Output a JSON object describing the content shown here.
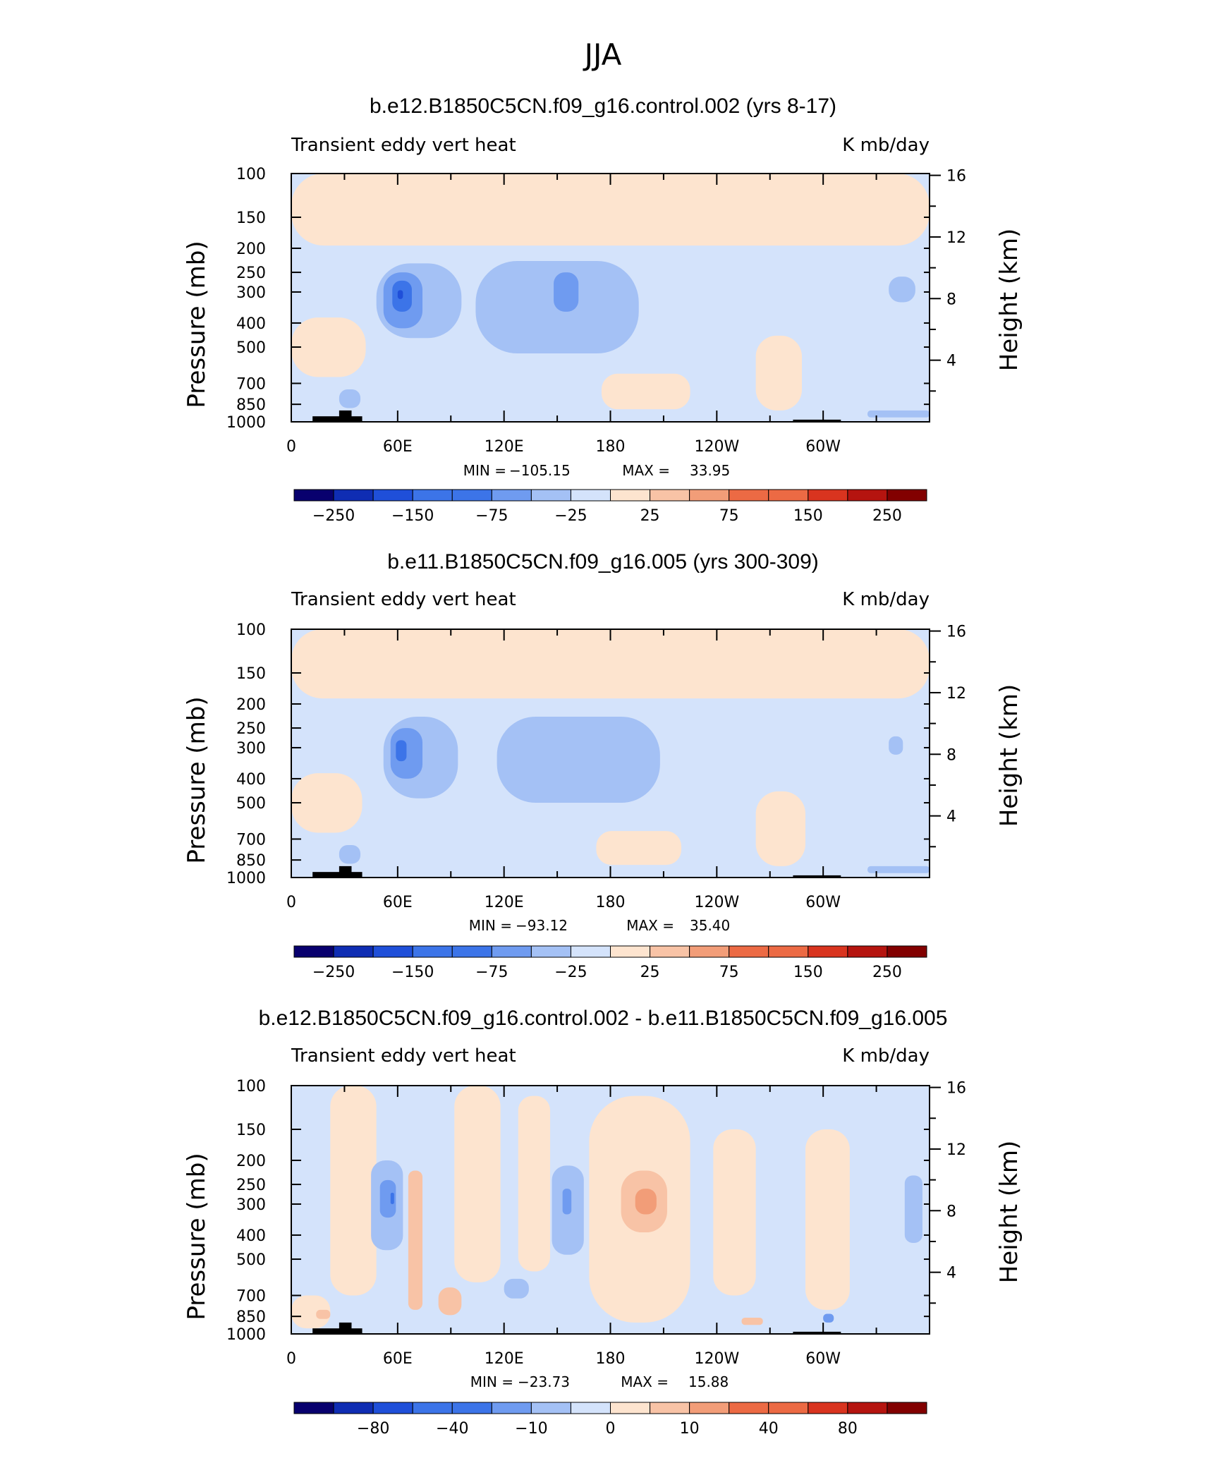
{
  "figure_title": "JJA",
  "colors": {
    "palette": [
      "#08006e",
      "#0f2db3",
      "#1f4fd9",
      "#3c74e8",
      "#6f9bf0",
      "#a4c1f5",
      "#d4e3fb",
      "#fde4cf",
      "#f8c3a6",
      "#f29d78",
      "#ec6a44",
      "#d9341f",
      "#b5140f",
      "#820000"
    ],
    "land": "#000000"
  },
  "chart_data": [
    {
      "type": "heatmap",
      "title": "b.e12.B1850C5CN.f09_g16.control.002 (yrs 8-17)",
      "variable_label": "Transient eddy vert heat",
      "units_label": "K mb/day",
      "ylabel": "Pressure (mb)",
      "ylabel_right": "Height (km)",
      "xticks": [
        "0",
        "60E",
        "120E",
        "180",
        "120W",
        "60W"
      ],
      "xtick_lon": [
        0,
        60,
        120,
        180,
        240,
        300
      ],
      "xlim": [
        0,
        360
      ],
      "yticks": [
        "100",
        "150",
        "200",
        "250",
        "300",
        "400",
        "500",
        "700",
        "850",
        "1000"
      ],
      "ytick_values": [
        100,
        150,
        200,
        250,
        300,
        400,
        500,
        700,
        850,
        1000
      ],
      "ylim": [
        1000,
        100
      ],
      "right_ticks": [
        "16",
        "12",
        "8",
        "4"
      ],
      "right_tick_values": [
        16,
        12,
        8,
        4
      ],
      "min_label": "MIN =",
      "min_value": "−105.15",
      "max_label": "MAX =",
      "max_value": "33.95",
      "colorbar_labels": [
        "−250",
        "−150",
        "−75",
        "−25",
        "25",
        "75",
        "150",
        "250"
      ],
      "field": {
        "background_level": -1,
        "features": [
          {
            "level": 1,
            "lon": [
              0,
              360
            ],
            "p": [
              100,
              195
            ]
          },
          {
            "level": -2,
            "lon": [
              48,
              96
            ],
            "p": [
              230,
              460
            ]
          },
          {
            "level": -3,
            "lon": [
              52,
              74
            ],
            "p": [
              250,
              420
            ]
          },
          {
            "level": -4,
            "lon": [
              57,
              68
            ],
            "p": [
              270,
              360
            ]
          },
          {
            "level": -5,
            "lon": [
              60,
              63
            ],
            "p": [
              295,
              320
            ]
          },
          {
            "level": -2,
            "lon": [
              104,
              196
            ],
            "p": [
              225,
              530
            ]
          },
          {
            "level": -3,
            "lon": [
              148,
              162
            ],
            "p": [
              250,
              360
            ]
          },
          {
            "level": 1,
            "lon": [
              175,
              225
            ],
            "p": [
              640,
              890
            ]
          },
          {
            "level": 1,
            "lon": [
              262,
              288
            ],
            "p": [
              450,
              900
            ]
          },
          {
            "level": 1,
            "lon": [
              0,
              42
            ],
            "p": [
              380,
              660
            ]
          },
          {
            "level": -2,
            "lon": [
              27,
              39
            ],
            "p": [
              740,
              880
            ]
          },
          {
            "level": -2,
            "lon": [
              325,
              360
            ],
            "p": [
              900,
              960
            ]
          },
          {
            "level": -2,
            "lon": [
              337,
              352
            ],
            "p": [
              260,
              330
            ]
          }
        ],
        "land": [
          {
            "lon": [
              12,
              40
            ],
            "p_top": 950
          },
          {
            "lon": [
              27,
              34
            ],
            "p_top": 900
          },
          {
            "lon": [
              283,
              310
            ],
            "p_top": 980
          }
        ]
      }
    },
    {
      "type": "heatmap",
      "title": "b.e11.B1850C5CN.f09_g16.005 (yrs 300-309)",
      "variable_label": "Transient eddy vert heat",
      "units_label": "K mb/day",
      "ylabel": "Pressure (mb)",
      "ylabel_right": "Height (km)",
      "xticks": [
        "0",
        "60E",
        "120E",
        "180",
        "120W",
        "60W"
      ],
      "xtick_lon": [
        0,
        60,
        120,
        180,
        240,
        300
      ],
      "xlim": [
        0,
        360
      ],
      "yticks": [
        "100",
        "150",
        "200",
        "250",
        "300",
        "400",
        "500",
        "700",
        "850",
        "1000"
      ],
      "ytick_values": [
        100,
        150,
        200,
        250,
        300,
        400,
        500,
        700,
        850,
        1000
      ],
      "ylim": [
        1000,
        100
      ],
      "right_ticks": [
        "16",
        "12",
        "8",
        "4"
      ],
      "right_tick_values": [
        16,
        12,
        8,
        4
      ],
      "min_label": "MIN =",
      "min_value": "−93.12",
      "max_label": "MAX =",
      "max_value": "35.40",
      "colorbar_labels": [
        "−250",
        "−150",
        "−75",
        "−25",
        "25",
        "75",
        "150",
        "250"
      ],
      "field": {
        "background_level": -1,
        "features": [
          {
            "level": 1,
            "lon": [
              0,
              360
            ],
            "p": [
              100,
              190
            ]
          },
          {
            "level": -2,
            "lon": [
              52,
              94
            ],
            "p": [
              225,
              480
            ]
          },
          {
            "level": -3,
            "lon": [
              56,
              74
            ],
            "p": [
              250,
              400
            ]
          },
          {
            "level": -4,
            "lon": [
              59,
              65
            ],
            "p": [
              280,
              340
            ]
          },
          {
            "level": -2,
            "lon": [
              116,
              208
            ],
            "p": [
              225,
              500
            ]
          },
          {
            "level": 1,
            "lon": [
              172,
              220
            ],
            "p": [
              650,
              890
            ]
          },
          {
            "level": 1,
            "lon": [
              262,
              290
            ],
            "p": [
              450,
              900
            ]
          },
          {
            "level": 1,
            "lon": [
              0,
              40
            ],
            "p": [
              380,
              660
            ]
          },
          {
            "level": -2,
            "lon": [
              27,
              39
            ],
            "p": [
              740,
              880
            ]
          },
          {
            "level": -2,
            "lon": [
              325,
              360
            ],
            "p": [
              900,
              960
            ]
          },
          {
            "level": -2,
            "lon": [
              337,
              345
            ],
            "p": [
              270,
              320
            ]
          }
        ],
        "land": [
          {
            "lon": [
              12,
              40
            ],
            "p_top": 950
          },
          {
            "lon": [
              27,
              34
            ],
            "p_top": 900
          },
          {
            "lon": [
              283,
              310
            ],
            "p_top": 980
          }
        ]
      }
    },
    {
      "type": "heatmap",
      "title": "b.e12.B1850C5CN.f09_g16.control.002 - b.e11.B1850C5CN.f09_g16.005",
      "variable_label": "Transient eddy vert heat",
      "units_label": "K mb/day",
      "ylabel": "Pressure (mb)",
      "ylabel_right": "Height (km)",
      "xticks": [
        "0",
        "60E",
        "120E",
        "180",
        "120W",
        "60W"
      ],
      "xtick_lon": [
        0,
        60,
        120,
        180,
        240,
        300
      ],
      "xlim": [
        0,
        360
      ],
      "yticks": [
        "100",
        "150",
        "200",
        "250",
        "300",
        "400",
        "500",
        "700",
        "850",
        "1000"
      ],
      "ytick_values": [
        100,
        150,
        200,
        250,
        300,
        400,
        500,
        700,
        850,
        1000
      ],
      "ylim": [
        1000,
        100
      ],
      "right_ticks": [
        "16",
        "12",
        "8",
        "4"
      ],
      "right_tick_values": [
        16,
        12,
        8,
        4
      ],
      "min_label": "MIN =",
      "min_value": "−23.73",
      "max_label": "MAX =",
      "max_value": "15.88",
      "colorbar_labels": [
        "−80",
        "−40",
        "−10",
        "0",
        "10",
        "40",
        "80"
      ],
      "field": {
        "background_level": -1,
        "features": [
          {
            "level": 1,
            "lon": [
              22,
              48
            ],
            "p": [
              100,
              700
            ]
          },
          {
            "level": 1,
            "lon": [
              92,
              118
            ],
            "p": [
              100,
              620
            ]
          },
          {
            "level": 1,
            "lon": [
              128,
              146
            ],
            "p": [
              110,
              560
            ]
          },
          {
            "level": 1,
            "lon": [
              168,
              225
            ],
            "p": [
              110,
              900
            ]
          },
          {
            "level": 1,
            "lon": [
              238,
              262
            ],
            "p": [
              150,
              700
            ]
          },
          {
            "level": 1,
            "lon": [
              290,
              315
            ],
            "p": [
              150,
              800
            ]
          },
          {
            "level": 1,
            "lon": [
              0,
              22
            ],
            "p": [
              700,
              950
            ]
          },
          {
            "level": -2,
            "lon": [
              45,
              63
            ],
            "p": [
              200,
              460
            ]
          },
          {
            "level": -3,
            "lon": [
              50,
              59
            ],
            "p": [
              240,
              340
            ]
          },
          {
            "level": -4,
            "lon": [
              56,
              58
            ],
            "p": [
              270,
              300
            ]
          },
          {
            "level": -2,
            "lon": [
              147,
              165
            ],
            "p": [
              210,
              480
            ]
          },
          {
            "level": -3,
            "lon": [
              153,
              158
            ],
            "p": [
              260,
              330
            ]
          },
          {
            "level": 2,
            "lon": [
              66,
              74
            ],
            "p": [
              220,
              800
            ]
          },
          {
            "level": 2,
            "lon": [
              83,
              96
            ],
            "p": [
              650,
              840
            ]
          },
          {
            "level": 2,
            "lon": [
              186,
              212
            ],
            "p": [
              220,
              390
            ]
          },
          {
            "level": 3,
            "lon": [
              194,
              206
            ],
            "p": [
              260,
              330
            ]
          },
          {
            "level": 2,
            "lon": [
              14,
              22
            ],
            "p": [
              800,
              870
            ]
          },
          {
            "level": 2,
            "lon": [
              254,
              266
            ],
            "p": [
              860,
              920
            ]
          },
          {
            "level": -2,
            "lon": [
              120,
              134
            ],
            "p": [
              600,
              720
            ]
          },
          {
            "level": -3,
            "lon": [
              300,
              306
            ],
            "p": [
              830,
              900
            ]
          },
          {
            "level": -2,
            "lon": [
              346,
              356
            ],
            "p": [
              230,
              430
            ]
          }
        ],
        "land": [
          {
            "lon": [
              12,
              40
            ],
            "p_top": 950
          },
          {
            "lon": [
              27,
              34
            ],
            "p_top": 900
          },
          {
            "lon": [
              283,
              310
            ],
            "p_top": 980
          }
        ]
      }
    }
  ]
}
